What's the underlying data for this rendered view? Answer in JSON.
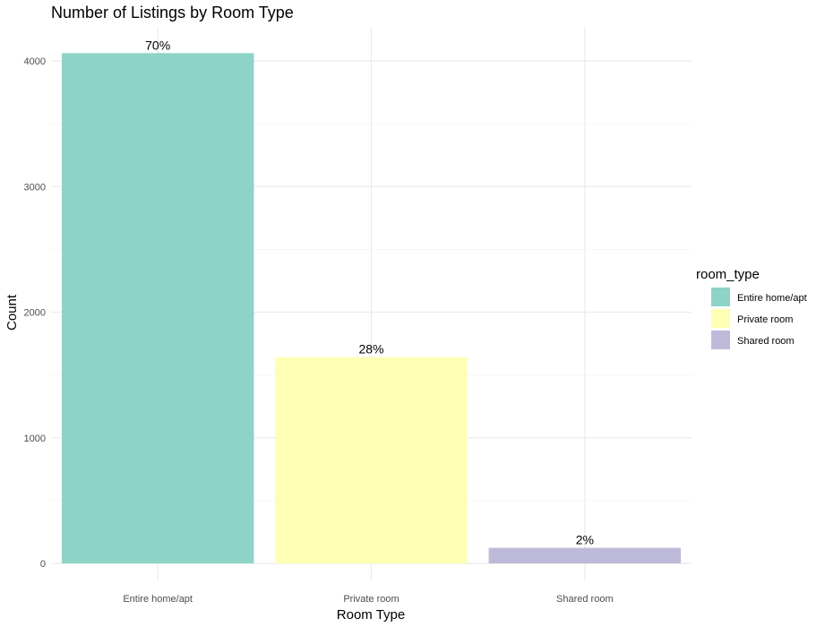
{
  "chart_data": {
    "type": "bar",
    "title": "Number of Listings by Room Type",
    "xlabel": "Room Type",
    "ylabel": "Count",
    "categories": [
      "Entire home/apt",
      "Private room",
      "Shared room"
    ],
    "values": [
      4062,
      1642,
      124
    ],
    "data_labels": [
      "70%",
      "28%",
      "2%"
    ],
    "ylim": [
      0,
      4260
    ],
    "yticks": [
      0,
      1000,
      2000,
      3000,
      4000
    ],
    "grid": true,
    "legend": {
      "title": "room_type",
      "position": "right",
      "items": [
        {
          "label": "Entire home/apt",
          "color": "#8DD3C7"
        },
        {
          "label": "Private room",
          "color": "#FFFFB3"
        },
        {
          "label": "Shared room",
          "color": "#BEBADA"
        }
      ]
    }
  }
}
